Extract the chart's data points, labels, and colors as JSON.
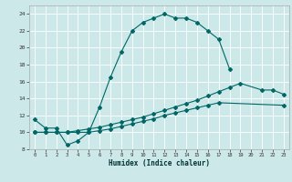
{
  "title": "",
  "xlabel": "Humidex (Indice chaleur)",
  "background_color": "#cce8e8",
  "grid_color": "#ffffff",
  "line_color": "#006666",
  "xlim": [
    -0.5,
    23.5
  ],
  "ylim": [
    8,
    25
  ],
  "xticks": [
    0,
    1,
    2,
    3,
    4,
    5,
    6,
    7,
    8,
    9,
    10,
    11,
    12,
    13,
    14,
    15,
    16,
    17,
    18,
    19,
    20,
    21,
    22,
    23
  ],
  "yticks": [
    8,
    10,
    12,
    14,
    16,
    18,
    20,
    22,
    24
  ],
  "curve1_x": [
    0,
    1,
    2,
    3,
    4,
    5,
    6,
    7,
    8,
    9,
    10,
    11,
    12,
    13,
    14,
    15,
    16,
    17,
    18
  ],
  "curve1_y": [
    11.5,
    10.5,
    10.5,
    8.5,
    9.0,
    10.0,
    13.0,
    16.5,
    19.5,
    22.0,
    23.0,
    23.5,
    24.0,
    23.5,
    23.5,
    23.0,
    22.0,
    21.0,
    17.5
  ],
  "curve2_x": [
    0,
    1,
    2,
    3,
    4,
    5,
    6,
    7,
    8,
    9,
    10,
    11,
    12,
    13,
    14,
    15,
    16,
    17,
    18,
    19,
    21,
    22,
    23
  ],
  "curve2_y": [
    10.0,
    10.0,
    10.0,
    10.0,
    10.2,
    10.4,
    10.6,
    10.9,
    11.2,
    11.5,
    11.8,
    12.2,
    12.6,
    13.0,
    13.4,
    13.8,
    14.3,
    14.8,
    15.3,
    15.8,
    15.0,
    15.0,
    14.5
  ],
  "curve3_x": [
    0,
    1,
    2,
    3,
    4,
    5,
    6,
    7,
    8,
    9,
    10,
    11,
    12,
    13,
    14,
    15,
    16,
    17,
    23
  ],
  "curve3_y": [
    10.0,
    10.0,
    10.0,
    10.0,
    10.0,
    10.0,
    10.2,
    10.4,
    10.7,
    11.0,
    11.3,
    11.6,
    12.0,
    12.3,
    12.6,
    12.9,
    13.2,
    13.5,
    13.2
  ]
}
